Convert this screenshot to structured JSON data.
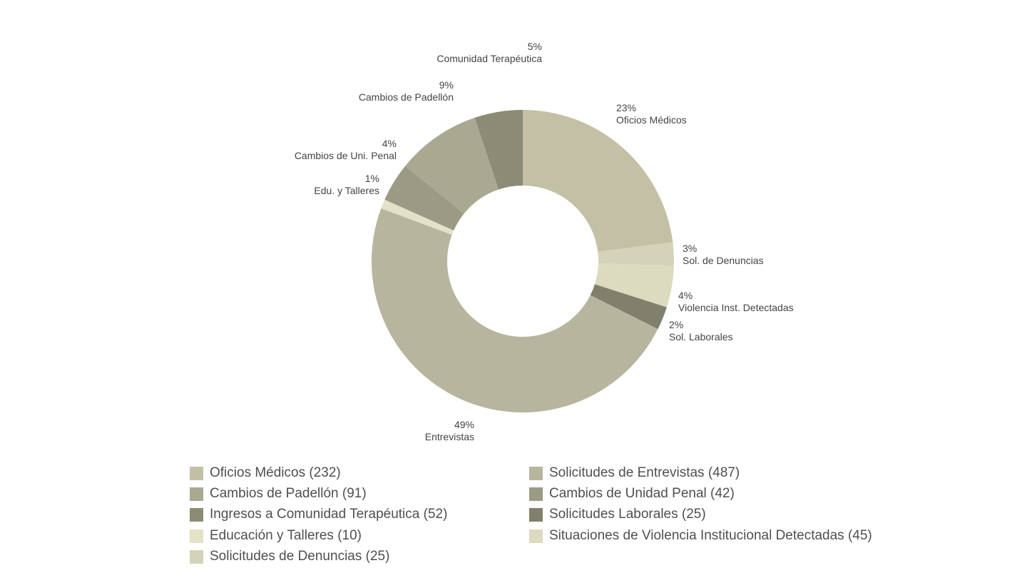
{
  "chart_data": {
    "type": "donut",
    "slices": [
      {
        "key": "oficios",
        "label": "Oficios Médicos",
        "percent": "23%",
        "value": 232,
        "color": "#c4c0a5"
      },
      {
        "key": "denuncias",
        "label": "Sol. de Denuncias",
        "percent": "3%",
        "value": 25,
        "color": "#d4d2b8"
      },
      {
        "key": "violencia",
        "label": "Violencia Inst. Detectadas",
        "percent": "4%",
        "value": 45,
        "color": "#dcdbbf"
      },
      {
        "key": "laborales",
        "label": "Sol. Laborales",
        "percent": "2%",
        "value": 25,
        "color": "#80806c"
      },
      {
        "key": "entrevistas",
        "label": "Entrevistas",
        "percent": "49%",
        "value": 487,
        "color": "#b7b59d"
      },
      {
        "key": "educacion",
        "label": "Edu. y Talleres",
        "percent": "1%",
        "value": 10,
        "color": "#e3e2c8"
      },
      {
        "key": "unidadpenal",
        "label": "Cambios de Uni. Penal",
        "percent": "4%",
        "value": 42,
        "color": "#9b9a85"
      },
      {
        "key": "padellon",
        "label": "Cambios de Padellón",
        "percent": "9%",
        "value": 91,
        "color": "#a9a891"
      },
      {
        "key": "comunidad",
        "label": "Comunidad Terapéutica",
        "percent": "5%",
        "value": 52,
        "color": "#8c8b75"
      }
    ],
    "legend": [
      {
        "text": "Oficios Médicos (232)",
        "color": "#c4c0a5"
      },
      {
        "text": "Solicitudes de Entrevistas (487)",
        "color": "#b7b59d"
      },
      {
        "text": "Cambios de Padellón (91)",
        "color": "#a9a891"
      },
      {
        "text": "Cambios de Unidad Penal (42)",
        "color": "#9b9a85"
      },
      {
        "text": "Ingresos a Comunidad Terapéutica (52)",
        "color": "#8c8b75"
      },
      {
        "text": "Solicitudes Laborales (25)",
        "color": "#80806c"
      },
      {
        "text": "Educación y Talleres (10)",
        "color": "#e3e2c8"
      },
      {
        "text": "Situaciones de Violencia Institucional Detectadas (45)",
        "color": "#dcdbbf"
      },
      {
        "text": "Solicitudes de Denuncias (25)",
        "color": "#d4d2b8"
      }
    ]
  }
}
